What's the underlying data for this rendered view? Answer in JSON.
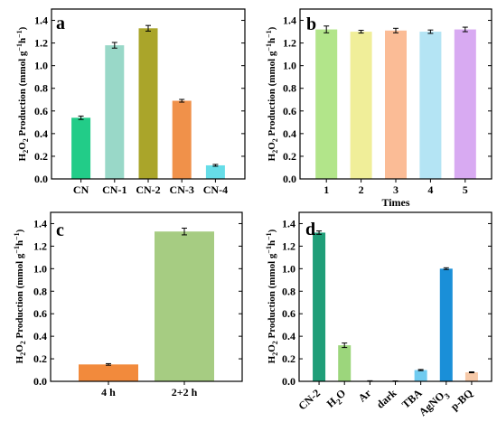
{
  "chart_data": [
    {
      "panel": "a",
      "type": "bar",
      "categories": [
        "CN",
        "CN-1",
        "CN-2",
        "CN-3",
        "CN-4"
      ],
      "values": [
        0.54,
        1.18,
        1.33,
        0.69,
        0.12
      ],
      "errors": [
        0.015,
        0.025,
        0.025,
        0.012,
        0.008
      ],
      "colors": [
        "#22cc88",
        "#99d8c8",
        "#aaa52a",
        "#f0914a",
        "#66dde8"
      ],
      "ylabel_main": "H",
      "ylabel_sub": "2",
      "ylabel_mid": "O",
      "ylabel_sub2": "2",
      "ylabel_rest": " Production (mmol g",
      "ylabel_sup": "−1",
      "ylabel_h": "h",
      "ylabel_sup2": "−1",
      "ylabel_end": ")",
      "xlabel": "",
      "ylim": [
        0,
        1.5
      ],
      "yticks": [
        "0.0",
        "0.2",
        "0.4",
        "0.6",
        "0.8",
        "1.0",
        "1.2",
        "1.4"
      ],
      "grid": false
    },
    {
      "panel": "b",
      "type": "bar",
      "categories": [
        "1",
        "2",
        "3",
        "4",
        "5"
      ],
      "values": [
        1.32,
        1.3,
        1.31,
        1.3,
        1.32
      ],
      "errors": [
        0.03,
        0.012,
        0.02,
        0.015,
        0.02
      ],
      "colors": [
        "#b2e58a",
        "#f0ee99",
        "#fbbc96",
        "#b4e4f4",
        "#d8aaf2"
      ],
      "ylabel_main": "H",
      "ylabel_sub": "2",
      "ylabel_mid": "O",
      "ylabel_sub2": "2",
      "ylabel_rest": " Production (mmol g",
      "ylabel_sup": "−1",
      "ylabel_h": "h",
      "ylabel_sup2": "−1",
      "ylabel_end": ")",
      "xlabel": "Times",
      "ylim": [
        0,
        1.5
      ],
      "yticks": [
        "0.0",
        "0.2",
        "0.4",
        "0.6",
        "0.8",
        "1.0",
        "1.2",
        "1.4"
      ],
      "grid": false
    },
    {
      "panel": "c",
      "type": "bar",
      "categories": [
        "4 h",
        "2+2 h"
      ],
      "values": [
        0.15,
        1.33
      ],
      "errors": [
        0.007,
        0.03
      ],
      "colors": [
        "#f28a3c",
        "#a6cc82"
      ],
      "ylabel_main": "H",
      "ylabel_sub": "2",
      "ylabel_mid": "O",
      "ylabel_sub2": "2",
      "ylabel_rest": " Production (mmol g",
      "ylabel_sup": "−1",
      "ylabel_h": "h",
      "ylabel_sup2": "−1",
      "ylabel_end": ")",
      "xlabel": "",
      "ylim": [
        0,
        1.5
      ],
      "yticks": [
        "0.0",
        "0.2",
        "0.4",
        "0.6",
        "0.8",
        "1.0",
        "1.2",
        "1.4"
      ],
      "grid": false
    },
    {
      "panel": "d",
      "type": "bar",
      "categories": [
        "CN-2",
        "H2O",
        "Ar",
        "dark",
        "TBA",
        "AgNO3",
        "p-BQ"
      ],
      "category_parts": [
        [
          "CN-2"
        ],
        [
          "H",
          "2",
          "O"
        ],
        [
          "Ar"
        ],
        [
          "dark"
        ],
        [
          "TBA"
        ],
        [
          "AgNO",
          "3"
        ],
        [
          "p-BQ"
        ]
      ],
      "values": [
        1.32,
        0.32,
        0.003,
        0.002,
        0.1,
        1.0,
        0.08
      ],
      "errors": [
        0.015,
        0.02,
        0.002,
        0.002,
        0.005,
        0.008,
        0.004
      ],
      "colors": [
        "#1f9e78",
        "#9cd67c",
        "#bfbfbf",
        "#bfbfbf",
        "#70cbf0",
        "#1a8fd8",
        "#f6c9a8"
      ],
      "ylabel_main": "H",
      "ylabel_sub": "2",
      "ylabel_mid": "O",
      "ylabel_sub2": "2",
      "ylabel_rest": " Production (mmol g",
      "ylabel_sup": "−1",
      "ylabel_h": "h",
      "ylabel_sup2": "−1",
      "ylabel_end": ")",
      "xlabel": "",
      "ylim": [
        0,
        1.5
      ],
      "yticks": [
        "0.0",
        "0.2",
        "0.4",
        "0.6",
        "0.8",
        "1.0",
        "1.2",
        "1.4"
      ],
      "grid": false
    }
  ]
}
